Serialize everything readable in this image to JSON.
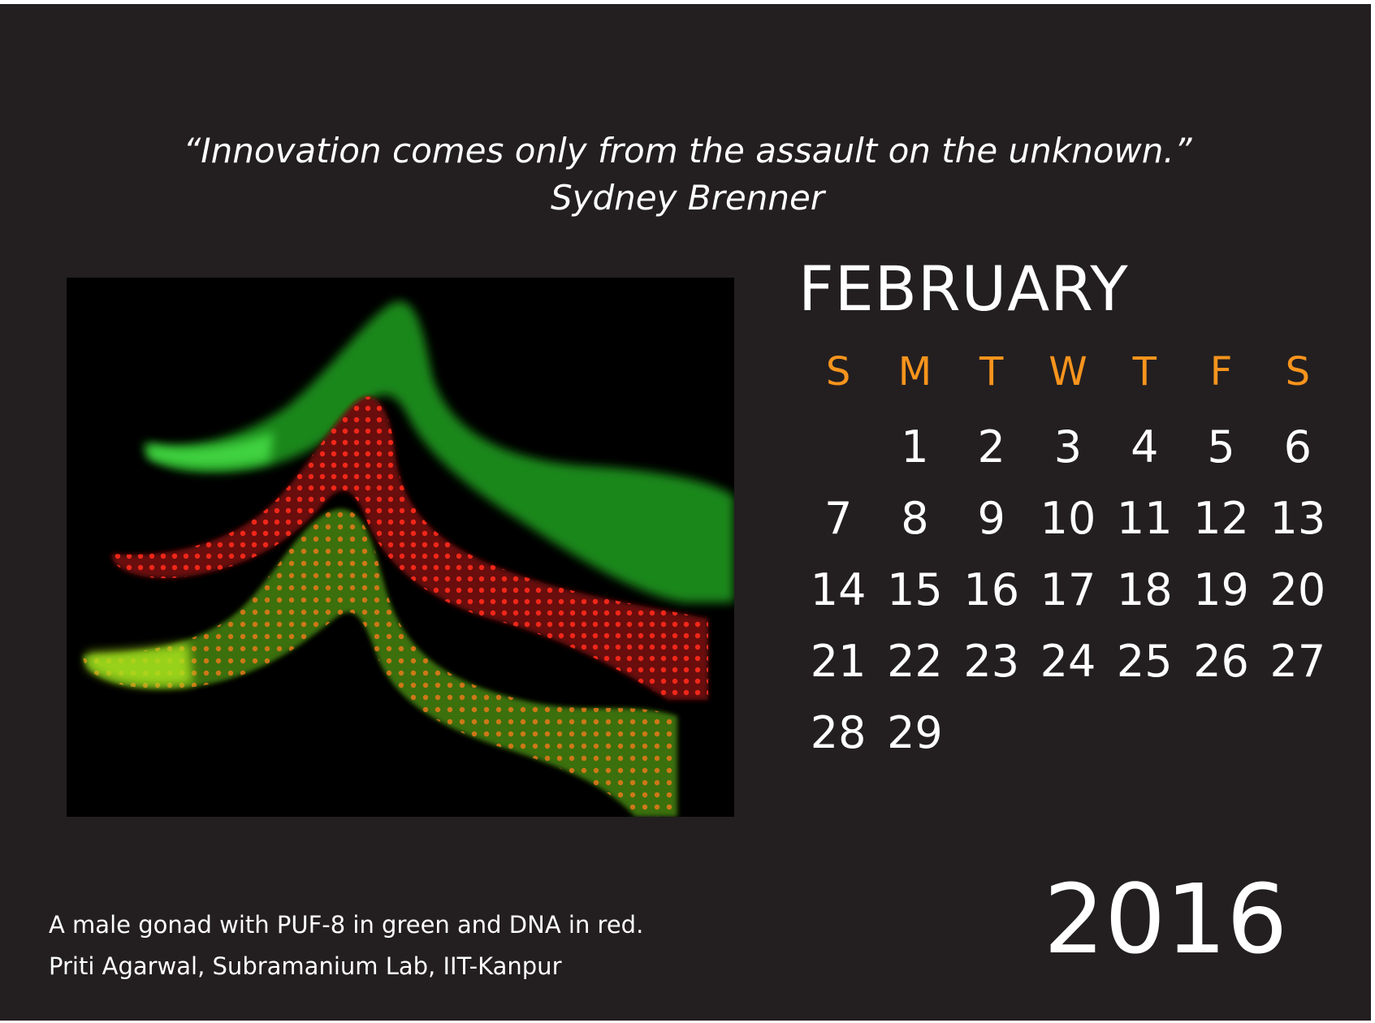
{
  "quote": {
    "text": "“Innovation comes only from the assault on the unknown.”",
    "author": "Sydney Brenner"
  },
  "calendar": {
    "month": "FEBRUARY",
    "year": "2016",
    "weekday_headers": [
      "S",
      "M",
      "T",
      "W",
      "T",
      "F",
      "S"
    ],
    "weeks": [
      [
        "",
        "1",
        "2",
        "3",
        "4",
        "5",
        "6"
      ],
      [
        "7",
        "8",
        "9",
        "10",
        "11",
        "12",
        "13"
      ],
      [
        "14",
        "15",
        "16",
        "17",
        "18",
        "19",
        "20"
      ],
      [
        "21",
        "22",
        "23",
        "24",
        "25",
        "26",
        "27"
      ],
      [
        "28",
        "29",
        "",
        "",
        "",
        "",
        ""
      ]
    ]
  },
  "caption": {
    "line1": "A male gonad with PUF-8 in green and DNA in red.",
    "line2": "Priti Agarwal, Subramanium Lab, IIT-Kanpur"
  },
  "colors": {
    "background": "#231f20",
    "text": "#ffffff",
    "weekday_accent": "#f7941d"
  }
}
